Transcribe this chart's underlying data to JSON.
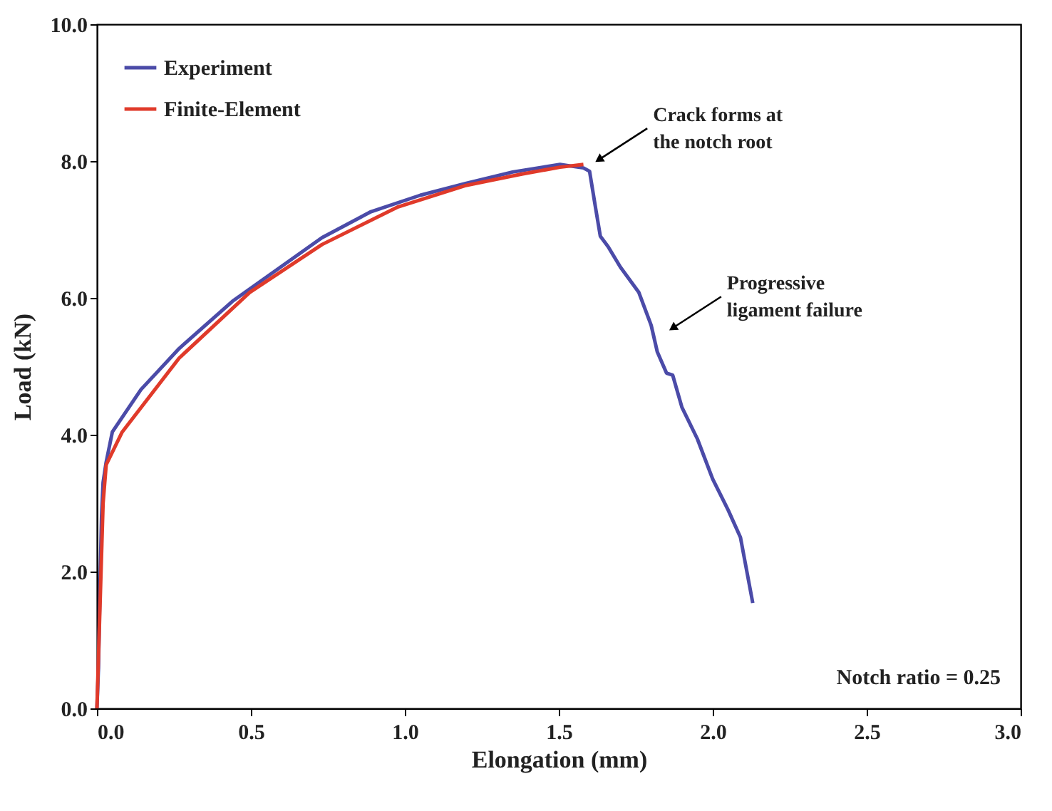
{
  "chart_data": {
    "type": "line",
    "xlabel": "Elongation (mm)",
    "ylabel": "Load (kN)",
    "xlim": [
      0,
      3
    ],
    "xticks": [
      {
        "value": 0,
        "label": "0.0"
      },
      0.5,
      {
        "value": 1,
        "label": "1.0"
      },
      1.5,
      {
        "value": 2,
        "label": "2.0"
      },
      2.5,
      {
        "value": 3,
        "label": "3.0"
      }
    ],
    "ylim": [
      0,
      10
    ],
    "yticks": [
      {
        "value": 0,
        "label": "0.0"
      },
      {
        "value": 2,
        "label": "2.0"
      },
      {
        "value": 4,
        "label": "4.0"
      },
      {
        "value": 6,
        "label": "6.0"
      },
      {
        "value": 8,
        "label": "8.0"
      },
      {
        "value": 10,
        "label": "10.0"
      }
    ],
    "legend": "top left",
    "grid": false,
    "marker": "none",
    "line_style": "solid",
    "series": [
      {
        "name": "Experiment",
        "color": "#4b4ba8",
        "x": [
          0,
          0.005,
          0.01,
          0.015,
          0.02,
          0.03,
          0.05,
          0.143,
          0.267,
          0.44,
          0.59,
          0.731,
          0.89,
          1.05,
          1.195,
          1.35,
          1.504,
          1.58,
          1.6,
          1.62,
          1.635,
          1.66,
          1.7,
          1.76,
          1.8,
          1.82,
          1.85,
          1.87,
          1.9,
          1.95,
          2.0,
          2.05,
          2.09,
          2.13
        ],
        "values": [
          0,
          0.6,
          1.8,
          2.8,
          3.3,
          3.6,
          4.04,
          4.66,
          5.26,
          5.95,
          6.43,
          6.88,
          7.26,
          7.5,
          7.67,
          7.84,
          7.95,
          7.9,
          7.85,
          7.3,
          6.9,
          6.75,
          6.45,
          6.08,
          5.6,
          5.21,
          4.9,
          4.87,
          4.4,
          3.94,
          3.35,
          2.9,
          2.5,
          1.54
        ]
      },
      {
        "name": "Finite-Element",
        "color": "#e03a2a",
        "x": [
          0,
          0.01,
          0.02,
          0.03,
          0.082,
          0.267,
          0.496,
          0.731,
          0.978,
          1.195,
          1.38,
          1.504,
          1.58
        ],
        "values": [
          0,
          1.5,
          3.0,
          3.56,
          4.04,
          5.12,
          6.08,
          6.78,
          7.33,
          7.64,
          7.81,
          7.91,
          7.95
        ]
      }
    ],
    "annotations": [
      {
        "text": "Crack forms at\nthe notch root",
        "x": 1.63,
        "y": 8.02
      },
      {
        "text": "Progressive\nligament failure",
        "x": 1.87,
        "y": 5.56
      },
      "Notch ratio  = 0.25"
    ]
  }
}
